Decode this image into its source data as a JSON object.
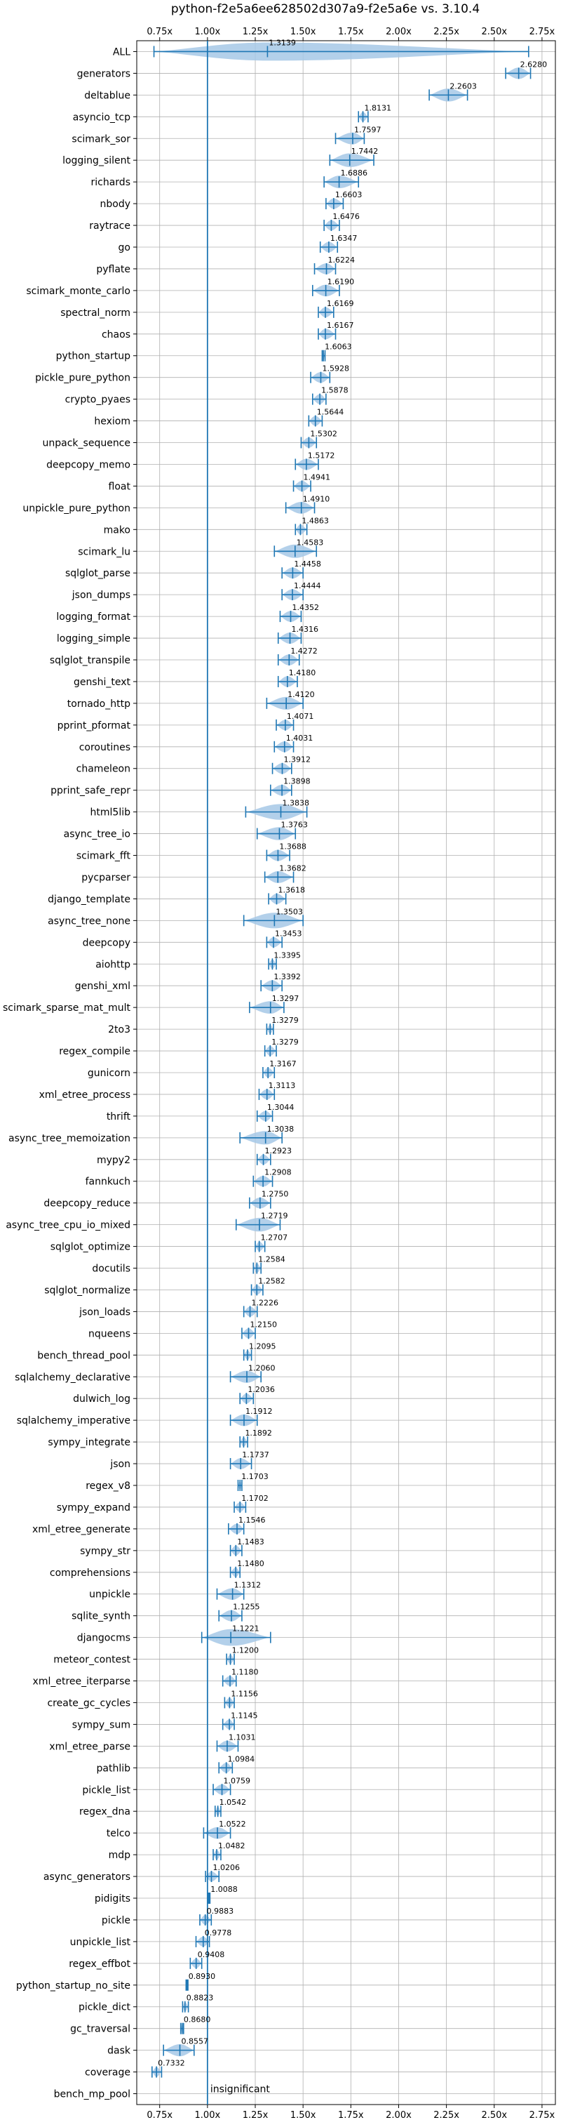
{
  "chart_data": {
    "type": "violin",
    "title": "python-f2e5a6ee628502d307a9-f2e5a6e vs. 3.10.4",
    "xlabel": "",
    "ylabel": "",
    "xlim": [
      0.63,
      2.82
    ],
    "x_ticks": [
      0.75,
      1.0,
      1.25,
      1.5,
      1.75,
      2.0,
      2.25,
      2.5,
      2.75
    ],
    "x_tick_labels": [
      "0.75x",
      "1.00x",
      "1.25x",
      "1.50x",
      "1.75x",
      "2.00x",
      "2.25x",
      "2.50x",
      "2.75x"
    ],
    "tick_positions": [
      "top",
      "bottom"
    ],
    "reference_line": 1.0,
    "grid": true,
    "series_color": "#1f77b4",
    "fill_color": "#a6c8e6",
    "benchmarks": [
      {
        "name": "ALL",
        "value": 1.3139,
        "value_label": "1.3139",
        "lo": 0.72,
        "hi": 2.68
      },
      {
        "name": "generators",
        "value": 2.628,
        "value_label": "2.6280",
        "lo": 2.56,
        "hi": 2.69
      },
      {
        "name": "deltablue",
        "value": 2.2603,
        "value_label": "2.2603",
        "lo": 2.16,
        "hi": 2.36
      },
      {
        "name": "asyncio_tcp",
        "value": 1.8131,
        "value_label": "1.8131",
        "lo": 1.79,
        "hi": 1.84
      },
      {
        "name": "scimark_sor",
        "value": 1.7597,
        "value_label": "1.7597",
        "lo": 1.67,
        "hi": 1.82
      },
      {
        "name": "logging_silent",
        "value": 1.7442,
        "value_label": "1.7442",
        "lo": 1.64,
        "hi": 1.87
      },
      {
        "name": "richards",
        "value": 1.6886,
        "value_label": "1.6886",
        "lo": 1.61,
        "hi": 1.79
      },
      {
        "name": "nbody",
        "value": 1.6603,
        "value_label": "1.6603",
        "lo": 1.62,
        "hi": 1.71
      },
      {
        "name": "raytrace",
        "value": 1.6476,
        "value_label": "1.6476",
        "lo": 1.61,
        "hi": 1.69
      },
      {
        "name": "go",
        "value": 1.6347,
        "value_label": "1.6347",
        "lo": 1.59,
        "hi": 1.68
      },
      {
        "name": "pyflate",
        "value": 1.6224,
        "value_label": "1.6224",
        "lo": 1.56,
        "hi": 1.67
      },
      {
        "name": "scimark_monte_carlo",
        "value": 1.619,
        "value_label": "1.6190",
        "lo": 1.55,
        "hi": 1.69
      },
      {
        "name": "spectral_norm",
        "value": 1.6169,
        "value_label": "1.6169",
        "lo": 1.58,
        "hi": 1.66
      },
      {
        "name": "chaos",
        "value": 1.6167,
        "value_label": "1.6167",
        "lo": 1.58,
        "hi": 1.67
      },
      {
        "name": "python_startup",
        "value": 1.6063,
        "value_label": "1.6063",
        "lo": 1.6,
        "hi": 1.615
      },
      {
        "name": "pickle_pure_python",
        "value": 1.5928,
        "value_label": "1.5928",
        "lo": 1.54,
        "hi": 1.64
      },
      {
        "name": "crypto_pyaes",
        "value": 1.5878,
        "value_label": "1.5878",
        "lo": 1.55,
        "hi": 1.62
      },
      {
        "name": "hexiom",
        "value": 1.5644,
        "value_label": "1.5644",
        "lo": 1.53,
        "hi": 1.6
      },
      {
        "name": "unpack_sequence",
        "value": 1.5302,
        "value_label": "1.5302",
        "lo": 1.49,
        "hi": 1.57
      },
      {
        "name": "deepcopy_memo",
        "value": 1.5172,
        "value_label": "1.5172",
        "lo": 1.46,
        "hi": 1.58
      },
      {
        "name": "float",
        "value": 1.4941,
        "value_label": "1.4941",
        "lo": 1.45,
        "hi": 1.54
      },
      {
        "name": "unpickle_pure_python",
        "value": 1.491,
        "value_label": "1.4910",
        "lo": 1.41,
        "hi": 1.56
      },
      {
        "name": "mako",
        "value": 1.4863,
        "value_label": "1.4863",
        "lo": 1.46,
        "hi": 1.52
      },
      {
        "name": "scimark_lu",
        "value": 1.4583,
        "value_label": "1.4583",
        "lo": 1.35,
        "hi": 1.57
      },
      {
        "name": "sqlglot_parse",
        "value": 1.4458,
        "value_label": "1.4458",
        "lo": 1.39,
        "hi": 1.5
      },
      {
        "name": "json_dumps",
        "value": 1.4444,
        "value_label": "1.4444",
        "lo": 1.39,
        "hi": 1.5
      },
      {
        "name": "logging_format",
        "value": 1.4352,
        "value_label": "1.4352",
        "lo": 1.38,
        "hi": 1.49
      },
      {
        "name": "logging_simple",
        "value": 1.4316,
        "value_label": "1.4316",
        "lo": 1.37,
        "hi": 1.49
      },
      {
        "name": "sqlglot_transpile",
        "value": 1.4272,
        "value_label": "1.4272",
        "lo": 1.37,
        "hi": 1.48
      },
      {
        "name": "genshi_text",
        "value": 1.418,
        "value_label": "1.4180",
        "lo": 1.37,
        "hi": 1.47
      },
      {
        "name": "tornado_http",
        "value": 1.412,
        "value_label": "1.4120",
        "lo": 1.31,
        "hi": 1.5
      },
      {
        "name": "pprint_pformat",
        "value": 1.4071,
        "value_label": "1.4071",
        "lo": 1.36,
        "hi": 1.45
      },
      {
        "name": "coroutines",
        "value": 1.4031,
        "value_label": "1.4031",
        "lo": 1.35,
        "hi": 1.45
      },
      {
        "name": "chameleon",
        "value": 1.3912,
        "value_label": "1.3912",
        "lo": 1.34,
        "hi": 1.44
      },
      {
        "name": "pprint_safe_repr",
        "value": 1.3898,
        "value_label": "1.3898",
        "lo": 1.33,
        "hi": 1.44
      },
      {
        "name": "html5lib",
        "value": 1.3838,
        "value_label": "1.3838",
        "lo": 1.2,
        "hi": 1.52
      },
      {
        "name": "async_tree_io",
        "value": 1.3763,
        "value_label": "1.3763",
        "lo": 1.26,
        "hi": 1.46
      },
      {
        "name": "scimark_fft",
        "value": 1.3688,
        "value_label": "1.3688",
        "lo": 1.31,
        "hi": 1.43
      },
      {
        "name": "pycparser",
        "value": 1.3682,
        "value_label": "1.3682",
        "lo": 1.3,
        "hi": 1.45
      },
      {
        "name": "django_template",
        "value": 1.3618,
        "value_label": "1.3618",
        "lo": 1.32,
        "hi": 1.41
      },
      {
        "name": "async_tree_none",
        "value": 1.3503,
        "value_label": "1.3503",
        "lo": 1.19,
        "hi": 1.5
      },
      {
        "name": "deepcopy",
        "value": 1.3453,
        "value_label": "1.3453",
        "lo": 1.31,
        "hi": 1.39
      },
      {
        "name": "aiohttp",
        "value": 1.3395,
        "value_label": "1.3395",
        "lo": 1.32,
        "hi": 1.36
      },
      {
        "name": "genshi_xml",
        "value": 1.3392,
        "value_label": "1.3392",
        "lo": 1.28,
        "hi": 1.39
      },
      {
        "name": "scimark_sparse_mat_mult",
        "value": 1.3297,
        "value_label": "1.3297",
        "lo": 1.22,
        "hi": 1.4
      },
      {
        "name": "2to3",
        "value": 1.3279,
        "value_label": "1.3279",
        "lo": 1.31,
        "hi": 1.345
      },
      {
        "name": "regex_compile",
        "value": 1.3279,
        "value_label": "1.3279",
        "lo": 1.3,
        "hi": 1.36
      },
      {
        "name": "gunicorn",
        "value": 1.3167,
        "value_label": "1.3167",
        "lo": 1.29,
        "hi": 1.35
      },
      {
        "name": "xml_etree_process",
        "value": 1.3113,
        "value_label": "1.3113",
        "lo": 1.27,
        "hi": 1.35
      },
      {
        "name": "thrift",
        "value": 1.3044,
        "value_label": "1.3044",
        "lo": 1.26,
        "hi": 1.34
      },
      {
        "name": "async_tree_memoization",
        "value": 1.3038,
        "value_label": "1.3038",
        "lo": 1.17,
        "hi": 1.39
      },
      {
        "name": "mypy2",
        "value": 1.2923,
        "value_label": "1.2923",
        "lo": 1.26,
        "hi": 1.33
      },
      {
        "name": "fannkuch",
        "value": 1.2908,
        "value_label": "1.2908",
        "lo": 1.24,
        "hi": 1.34
      },
      {
        "name": "deepcopy_reduce",
        "value": 1.275,
        "value_label": "1.2750",
        "lo": 1.22,
        "hi": 1.33
      },
      {
        "name": "async_tree_cpu_io_mixed",
        "value": 1.2719,
        "value_label": "1.2719",
        "lo": 1.15,
        "hi": 1.38
      },
      {
        "name": "sqlglot_optimize",
        "value": 1.2707,
        "value_label": "1.2707",
        "lo": 1.25,
        "hi": 1.3
      },
      {
        "name": "docutils",
        "value": 1.2584,
        "value_label": "1.2584",
        "lo": 1.24,
        "hi": 1.28
      },
      {
        "name": "sqlglot_normalize",
        "value": 1.2582,
        "value_label": "1.2582",
        "lo": 1.23,
        "hi": 1.29
      },
      {
        "name": "json_loads",
        "value": 1.2226,
        "value_label": "1.2226",
        "lo": 1.19,
        "hi": 1.26
      },
      {
        "name": "nqueens",
        "value": 1.215,
        "value_label": "1.2150",
        "lo": 1.18,
        "hi": 1.25
      },
      {
        "name": "bench_thread_pool",
        "value": 1.2095,
        "value_label": "1.2095",
        "lo": 1.19,
        "hi": 1.23
      },
      {
        "name": "sqlalchemy_declarative",
        "value": 1.206,
        "value_label": "1.2060",
        "lo": 1.12,
        "hi": 1.28
      },
      {
        "name": "dulwich_log",
        "value": 1.2036,
        "value_label": "1.2036",
        "lo": 1.17,
        "hi": 1.24
      },
      {
        "name": "sqlalchemy_imperative",
        "value": 1.1912,
        "value_label": "1.1912",
        "lo": 1.12,
        "hi": 1.26
      },
      {
        "name": "sympy_integrate",
        "value": 1.1892,
        "value_label": "1.1892",
        "lo": 1.17,
        "hi": 1.21
      },
      {
        "name": "json",
        "value": 1.1737,
        "value_label": "1.1737",
        "lo": 1.12,
        "hi": 1.23
      },
      {
        "name": "regex_v8",
        "value": 1.1703,
        "value_label": "1.1703",
        "lo": 1.16,
        "hi": 1.18
      },
      {
        "name": "sympy_expand",
        "value": 1.1702,
        "value_label": "1.1702",
        "lo": 1.14,
        "hi": 1.2
      },
      {
        "name": "xml_etree_generate",
        "value": 1.1546,
        "value_label": "1.1546",
        "lo": 1.11,
        "hi": 1.19
      },
      {
        "name": "sympy_str",
        "value": 1.1483,
        "value_label": "1.1483",
        "lo": 1.12,
        "hi": 1.18
      },
      {
        "name": "comprehensions",
        "value": 1.148,
        "value_label": "1.1480",
        "lo": 1.12,
        "hi": 1.17
      },
      {
        "name": "unpickle",
        "value": 1.1312,
        "value_label": "1.1312",
        "lo": 1.05,
        "hi": 1.19
      },
      {
        "name": "sqlite_synth",
        "value": 1.1255,
        "value_label": "1.1255",
        "lo": 1.06,
        "hi": 1.18
      },
      {
        "name": "djangocms",
        "value": 1.1221,
        "value_label": "1.1221",
        "lo": 0.97,
        "hi": 1.33
      },
      {
        "name": "meteor_contest",
        "value": 1.12,
        "value_label": "1.1200",
        "lo": 1.1,
        "hi": 1.14
      },
      {
        "name": "xml_etree_iterparse",
        "value": 1.118,
        "value_label": "1.1180",
        "lo": 1.08,
        "hi": 1.15
      },
      {
        "name": "create_gc_cycles",
        "value": 1.1156,
        "value_label": "1.1156",
        "lo": 1.09,
        "hi": 1.14
      },
      {
        "name": "sympy_sum",
        "value": 1.1145,
        "value_label": "1.1145",
        "lo": 1.08,
        "hi": 1.14
      },
      {
        "name": "xml_etree_parse",
        "value": 1.1031,
        "value_label": "1.1031",
        "lo": 1.05,
        "hi": 1.16
      },
      {
        "name": "pathlib",
        "value": 1.0984,
        "value_label": "1.0984",
        "lo": 1.06,
        "hi": 1.13
      },
      {
        "name": "pickle_list",
        "value": 1.0759,
        "value_label": "1.0759",
        "lo": 1.03,
        "hi": 1.12
      },
      {
        "name": "regex_dna",
        "value": 1.0542,
        "value_label": "1.0542",
        "lo": 1.04,
        "hi": 1.07
      },
      {
        "name": "telco",
        "value": 1.0522,
        "value_label": "1.0522",
        "lo": 0.98,
        "hi": 1.12
      },
      {
        "name": "mdp",
        "value": 1.0482,
        "value_label": "1.0482",
        "lo": 1.03,
        "hi": 1.07
      },
      {
        "name": "async_generators",
        "value": 1.0206,
        "value_label": "1.0206",
        "lo": 0.99,
        "hi": 1.06
      },
      {
        "name": "pidigits",
        "value": 1.0088,
        "value_label": "1.0088",
        "lo": 1.005,
        "hi": 1.013
      },
      {
        "name": "pickle",
        "value": 0.9883,
        "value_label": "0.9883",
        "lo": 0.96,
        "hi": 1.02
      },
      {
        "name": "unpickle_list",
        "value": 0.9778,
        "value_label": "0.9778",
        "lo": 0.94,
        "hi": 1.01
      },
      {
        "name": "regex_effbot",
        "value": 0.9408,
        "value_label": "0.9408",
        "lo": 0.91,
        "hi": 0.97
      },
      {
        "name": "python_startup_no_site",
        "value": 0.893,
        "value_label": "0.8930",
        "lo": 0.888,
        "hi": 0.898
      },
      {
        "name": "pickle_dict",
        "value": 0.8823,
        "value_label": "0.8823",
        "lo": 0.87,
        "hi": 0.9
      },
      {
        "name": "gc_traversal",
        "value": 0.868,
        "value_label": "0.8680",
        "lo": 0.86,
        "hi": 0.875
      },
      {
        "name": "dask",
        "value": 0.8557,
        "value_label": "0.8557",
        "lo": 0.77,
        "hi": 0.93
      },
      {
        "name": "coverage",
        "value": 0.7332,
        "value_label": "0.7332",
        "lo": 0.71,
        "hi": 0.76
      },
      {
        "name": "bench_mp_pool",
        "value": null,
        "value_label": "insignificant",
        "lo": null,
        "hi": null
      }
    ]
  }
}
